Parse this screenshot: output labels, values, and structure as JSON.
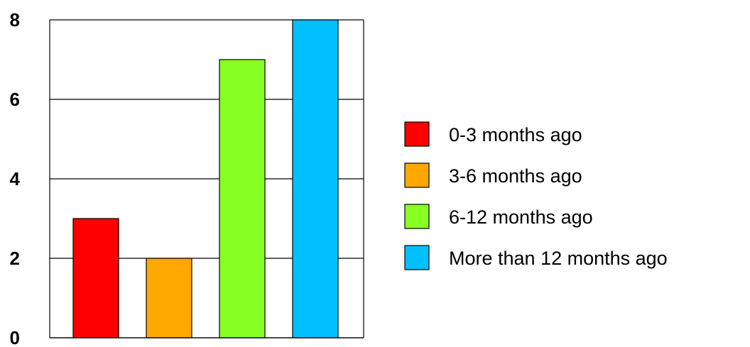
{
  "chart_data": {
    "type": "bar",
    "title": "",
    "xlabel": "",
    "ylabel": "",
    "categories": [
      "0-3 months ago",
      "3-6 months ago",
      "6-12 months ago",
      "More than 12 months ago"
    ],
    "values": [
      3,
      2,
      7,
      8
    ],
    "colors": [
      "#ff0000",
      "#ffa800",
      "#88ff22",
      "#00c0ff"
    ],
    "ylim": [
      0,
      8
    ],
    "yticks": [
      "0",
      "2",
      "4",
      "6",
      "8"
    ],
    "grid": true,
    "legend_position": "right",
    "legend": [
      "0-3 months ago",
      "3-6 months ago",
      "6-12 months ago",
      "More than 12 months ago"
    ]
  }
}
